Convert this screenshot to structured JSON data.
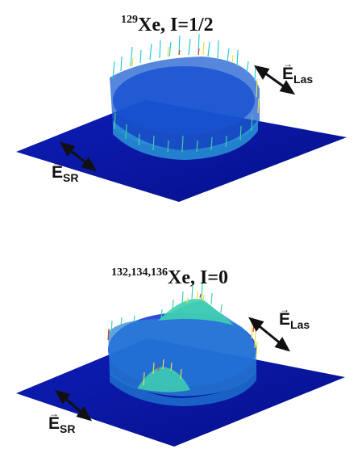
{
  "panels": [
    {
      "title_sup": "129",
      "title_main": "Xe, I=1/2",
      "e_las_main": "E",
      "e_las_sub": "Las",
      "e_sr_main": "E",
      "e_sr_sub": "SR",
      "vector_glyph": "→",
      "colors": {
        "base": "#0a1aa8",
        "ring": "#1b6fd6",
        "hot": "#e8e23a"
      }
    },
    {
      "title_sup": "132,134,136",
      "title_main": "Xe, I=0",
      "e_las_main": "E",
      "e_las_sub": "Las",
      "e_sr_main": "E",
      "e_sr_sub": "SR",
      "vector_glyph": "→",
      "colors": {
        "base": "#0a1aa8",
        "ring": "#1b6fd6",
        "hot": "#e8e23a"
      }
    }
  ]
}
